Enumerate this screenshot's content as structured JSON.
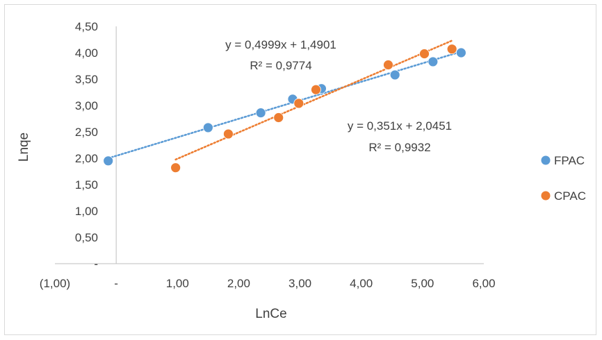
{
  "chart_data": {
    "type": "scatter",
    "xlabel": "LnCe",
    "ylabel": "Lnqe",
    "xlim": [
      -1,
      6
    ],
    "ylim": [
      0,
      4.5
    ],
    "x_ticks": [
      -1,
      0,
      1,
      2,
      3,
      4,
      5,
      6
    ],
    "x_tick_labels": [
      "(1,00)",
      "-",
      "1,00",
      "2,00",
      "3,00",
      "4,00",
      "5,00",
      "6,00"
    ],
    "y_ticks": [
      0,
      0.5,
      1,
      1.5,
      2,
      2.5,
      3,
      3.5,
      4,
      4.5
    ],
    "y_tick_labels": [
      "-",
      "0,50",
      "1,00",
      "1,50",
      "2,00",
      "2,50",
      "3,00",
      "3,50",
      "4,00",
      "4,50"
    ],
    "grid": false,
    "legend_position": "right",
    "series": [
      {
        "name": "FPAC",
        "color": "#5b9bd5",
        "x": [
          -0.13,
          1.5,
          2.36,
          2.88,
          3.35,
          4.55,
          5.17,
          5.63
        ],
        "y": [
          1.95,
          2.58,
          2.86,
          3.12,
          3.32,
          3.58,
          3.83,
          4.0
        ],
        "trendline": {
          "slope": 0.351,
          "intercept": 2.0451,
          "x_range": [
            -0.13,
            5.63
          ]
        },
        "equation": "y = 0,351x + 2,0451",
        "r2": "R² = 0,9932"
      },
      {
        "name": "CPAC",
        "color": "#ed7d31",
        "x": [
          0.97,
          1.83,
          2.65,
          2.98,
          3.26,
          4.44,
          5.03,
          5.48
        ],
        "y": [
          1.82,
          2.46,
          2.77,
          3.04,
          3.3,
          3.77,
          3.98,
          4.07
        ],
        "trendline": {
          "slope": 0.4999,
          "intercept": 1.4901,
          "x_range": [
            0.97,
            5.48
          ]
        },
        "equation": "y = 0,4999x + 1,4901",
        "r2": "R² = 0,9774"
      }
    ]
  }
}
